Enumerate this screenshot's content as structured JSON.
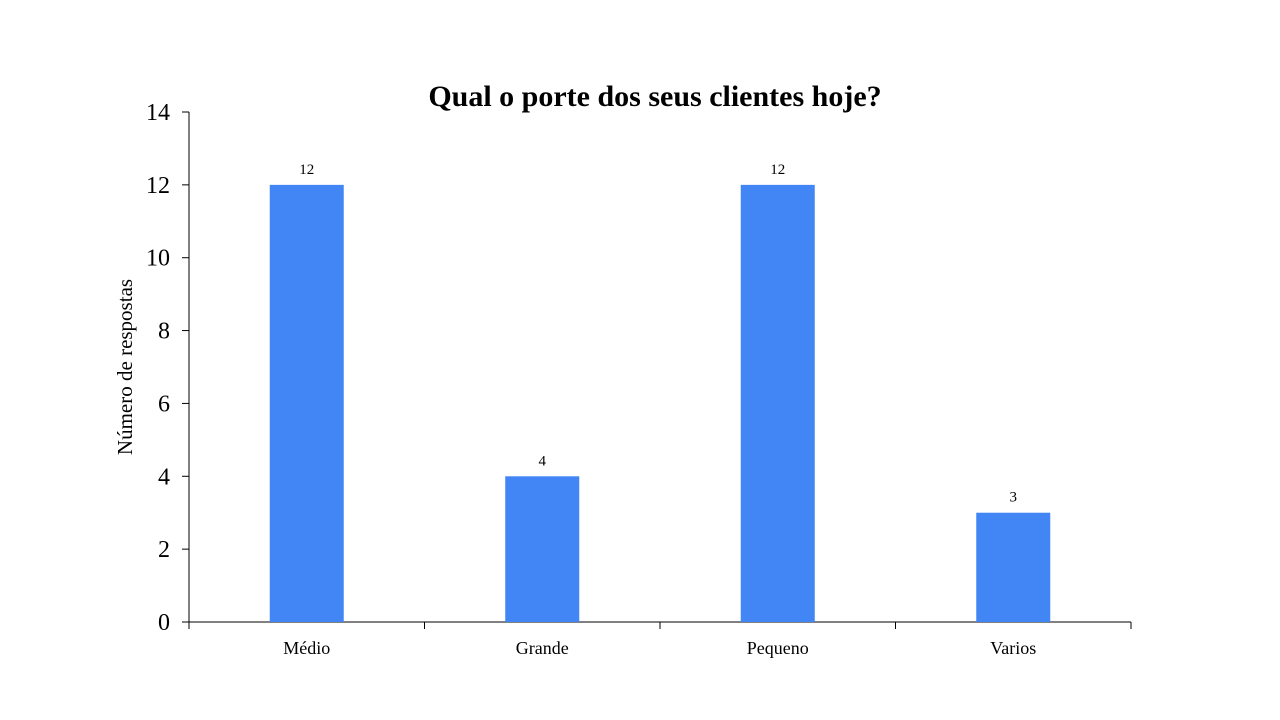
{
  "chart_data": {
    "type": "bar",
    "title": "Qual o porte dos seus clientes hoje?",
    "xlabel": "",
    "ylabel": "Número de respostas",
    "categories": [
      "Médio",
      "Grande",
      "Pequeno",
      "Varios"
    ],
    "values": [
      12,
      4,
      12,
      3
    ],
    "data_labels": [
      "12",
      "4",
      "12",
      "3"
    ],
    "ylim": [
      0,
      14
    ],
    "yticks": [
      0,
      2,
      4,
      6,
      8,
      10,
      12,
      14
    ],
    "ytick_labels": [
      "0",
      "2",
      "4",
      "6",
      "8",
      "10",
      "12",
      "14"
    ],
    "grid": false,
    "legend": "none",
    "bar_color": "#4285f4"
  }
}
